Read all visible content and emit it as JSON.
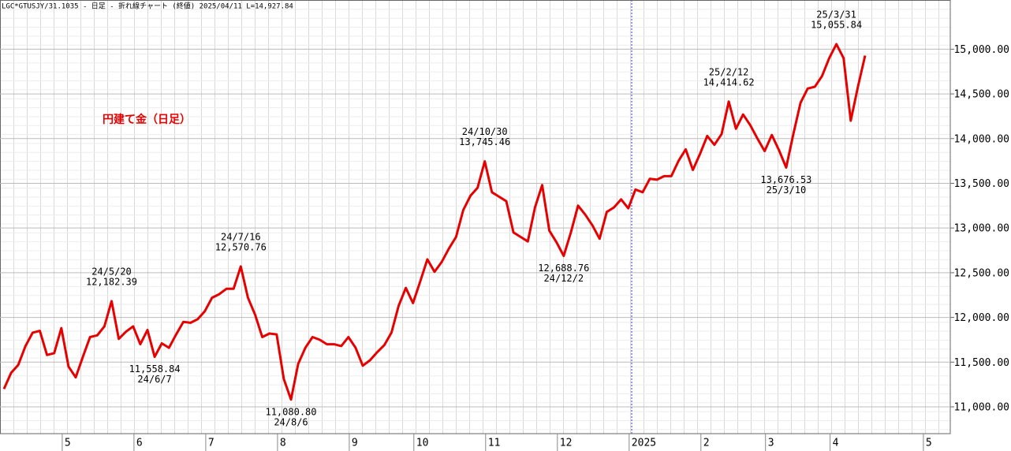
{
  "chart_data": {
    "type": "line",
    "title": "LGC*GTUSJY/31.1035 - 日足 - 折れ線チャート (終値)  2025/04/11 L=14,927.84",
    "label": "円建て金（日足）",
    "categories": [
      null,
      null,
      null,
      null,
      null,
      null,
      null,
      null,
      null,
      "5",
      null,
      null,
      null,
      null,
      null,
      null,
      null,
      null,
      null,
      "6",
      null,
      null,
      null,
      null,
      null,
      null,
      null,
      null,
      null,
      "7",
      null,
      null,
      null,
      null,
      null,
      null,
      null,
      null,
      null,
      "8",
      null,
      null,
      null,
      null,
      null,
      null,
      null,
      null,
      null,
      "9",
      null,
      null,
      null,
      null,
      null,
      null,
      null,
      null,
      "10",
      null,
      null,
      null,
      null,
      null,
      null,
      null,
      null,
      null,
      "11",
      null,
      null,
      null,
      null,
      null,
      null,
      null,
      null,
      null,
      "12",
      null,
      null,
      null,
      null,
      null,
      null,
      null,
      null,
      null,
      "2025",
      null,
      null,
      null,
      null,
      null,
      null,
      null,
      null,
      null,
      "2",
      null,
      null,
      null,
      null,
      null,
      null,
      null,
      null,
      "3",
      null,
      null,
      null,
      null,
      null,
      null,
      null,
      null,
      "4",
      null,
      null,
      null,
      null,
      null,
      null,
      null,
      null,
      null,
      null,
      null,
      null,
      "5",
      null
    ],
    "values": [
      11200,
      11380,
      11470,
      11680,
      11830,
      11850,
      11580,
      11600,
      11880,
      11450,
      11330,
      11560,
      11780,
      11800,
      11900,
      12182.39,
      11760,
      11840,
      11900,
      11700,
      11860,
      11558.84,
      11710,
      11660,
      11810,
      11950,
      11940,
      11980,
      12070,
      12220,
      12260,
      12320,
      12320,
      12570.76,
      12220,
      12030,
      11780,
      11820,
      11810,
      11310,
      11080.8,
      11480,
      11660,
      11780,
      11750,
      11700,
      11700,
      11680,
      11780,
      11660,
      11460,
      11520,
      11610,
      11690,
      11830,
      12130,
      12330,
      12160,
      12400,
      12650,
      12510,
      12620,
      12770,
      12900,
      13200,
      13360,
      13450,
      13745.46,
      13400,
      13350,
      13300,
      12950,
      12900,
      12850,
      13230,
      13480,
      12970,
      12840,
      12688.76,
      12950,
      13250,
      13150,
      13030,
      12880,
      13180,
      13230,
      13320,
      13220,
      13430,
      13400,
      13550,
      13540,
      13580,
      13580,
      13750,
      13880,
      13650,
      13830,
      14030,
      13930,
      14050,
      14414.62,
      14110,
      14270,
      14150,
      14000,
      13860,
      14040,
      13870,
      13676.53,
      14050,
      14400,
      14560,
      14580,
      14700,
      14900,
      15055.84,
      14900,
      14200,
      14580,
      14928,
      null,
      null,
      null,
      null,
      null,
      null,
      null,
      null,
      null,
      null
    ],
    "color": "#e60000",
    "ylim": [
      10700,
      15550
    ],
    "yticks": [
      {
        "value": 11000,
        "label": "11,000.00"
      },
      {
        "value": 11500,
        "label": "11,500.00"
      },
      {
        "value": 12000,
        "label": "12,000.00"
      },
      {
        "value": 12500,
        "label": "12,500.00"
      },
      {
        "value": 13000,
        "label": "13,000.00"
      },
      {
        "value": 13500,
        "label": "13,500.00"
      },
      {
        "value": 14000,
        "label": "14,000.00"
      },
      {
        "value": 14500,
        "label": "14,500.00"
      },
      {
        "value": 15000,
        "label": "15,000.00"
      }
    ],
    "grid": true,
    "annotations": [
      {
        "date": "24/5/20",
        "price": "12,182.39"
      },
      {
        "date": "24/6/7",
        "price": "11,558.84"
      },
      {
        "date": "24/7/16",
        "price": "12,570.76"
      },
      {
        "date": "24/8/6",
        "price": "11,080.80"
      },
      {
        "date": "24/10/30",
        "price": "13,745.46"
      },
      {
        "date": "24/12/2",
        "price": "12,688.76"
      },
      {
        "date": "25/2/12",
        "price": "14,414.62"
      },
      {
        "date": "25/3/10",
        "price": "13,676.53"
      },
      {
        "date": "25/3/31",
        "price": "15,055.84"
      }
    ]
  }
}
